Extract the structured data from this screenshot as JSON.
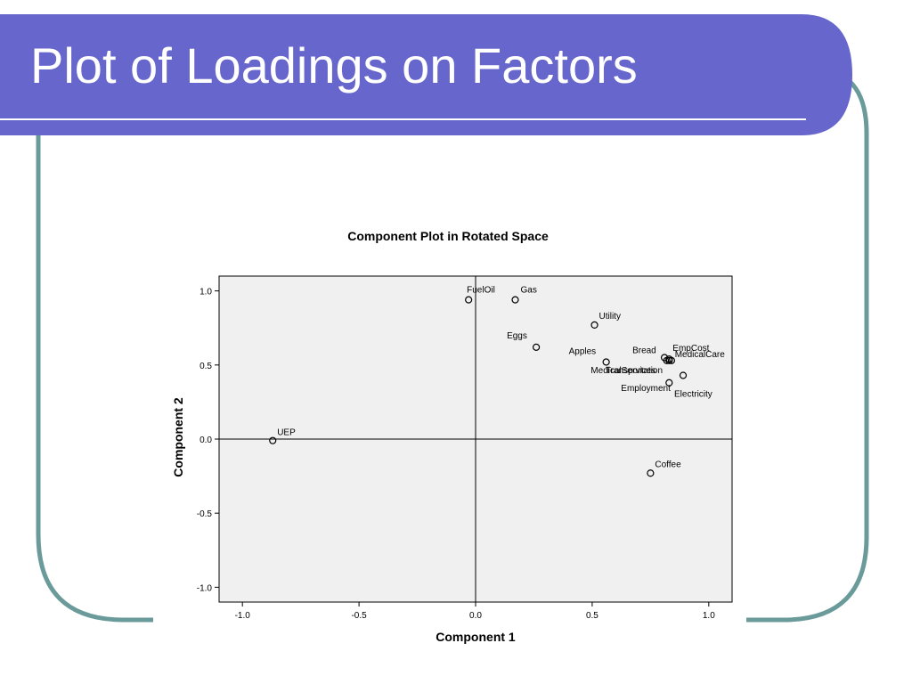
{
  "slide": {
    "title": "Plot of Loadings on Factors",
    "colors": {
      "title_bar": "#6666cc",
      "frame_border": "#6a9a9a",
      "plot_background": "#f0f0f0"
    }
  },
  "chart_data": {
    "type": "scatter",
    "title": "Component Plot in Rotated Space",
    "xlabel": "Component 1",
    "ylabel": "Component 2",
    "xlim": [
      -1.1,
      1.1
    ],
    "ylim": [
      -1.1,
      1.1
    ],
    "xticks": [
      -1.0,
      -0.5,
      0.0,
      0.5,
      1.0
    ],
    "yticks": [
      1.0,
      0.5,
      0.0,
      -0.5,
      -1.0
    ],
    "xtick_labels": [
      "-1.0",
      "-0.5",
      "0.0",
      "0.5",
      "1.0"
    ],
    "ytick_labels": [
      "1.0",
      "0.5",
      "0.0",
      "-0.5",
      "-1.0"
    ],
    "reference_lines": {
      "x": 0,
      "y": 0
    },
    "grid": false,
    "points": [
      {
        "label": "FuelOil",
        "x": -0.03,
        "y": 0.94
      },
      {
        "label": "Gas",
        "x": 0.17,
        "y": 0.94
      },
      {
        "label": "Utility",
        "x": 0.51,
        "y": 0.77
      },
      {
        "label": "Eggs",
        "x": 0.26,
        "y": 0.62
      },
      {
        "label": "Apples",
        "x": 0.56,
        "y": 0.52
      },
      {
        "label": "Bread",
        "x": 0.81,
        "y": 0.55
      },
      {
        "label": "EmpCost",
        "x": 0.83,
        "y": 0.54
      },
      {
        "label": "MedicalCare",
        "x": 0.82,
        "y": 0.53
      },
      {
        "label": "Transportation",
        "x": 0.84,
        "y": 0.53
      },
      {
        "label": "MedicalServices",
        "x": 0.83,
        "y": 0.53
      },
      {
        "label": "Electricity",
        "x": 0.89,
        "y": 0.43
      },
      {
        "label": "Employment",
        "x": 0.83,
        "y": 0.38
      },
      {
        "label": "UEP",
        "x": -0.87,
        "y": -0.01
      },
      {
        "label": "Coffee",
        "x": 0.75,
        "y": -0.23
      }
    ]
  }
}
